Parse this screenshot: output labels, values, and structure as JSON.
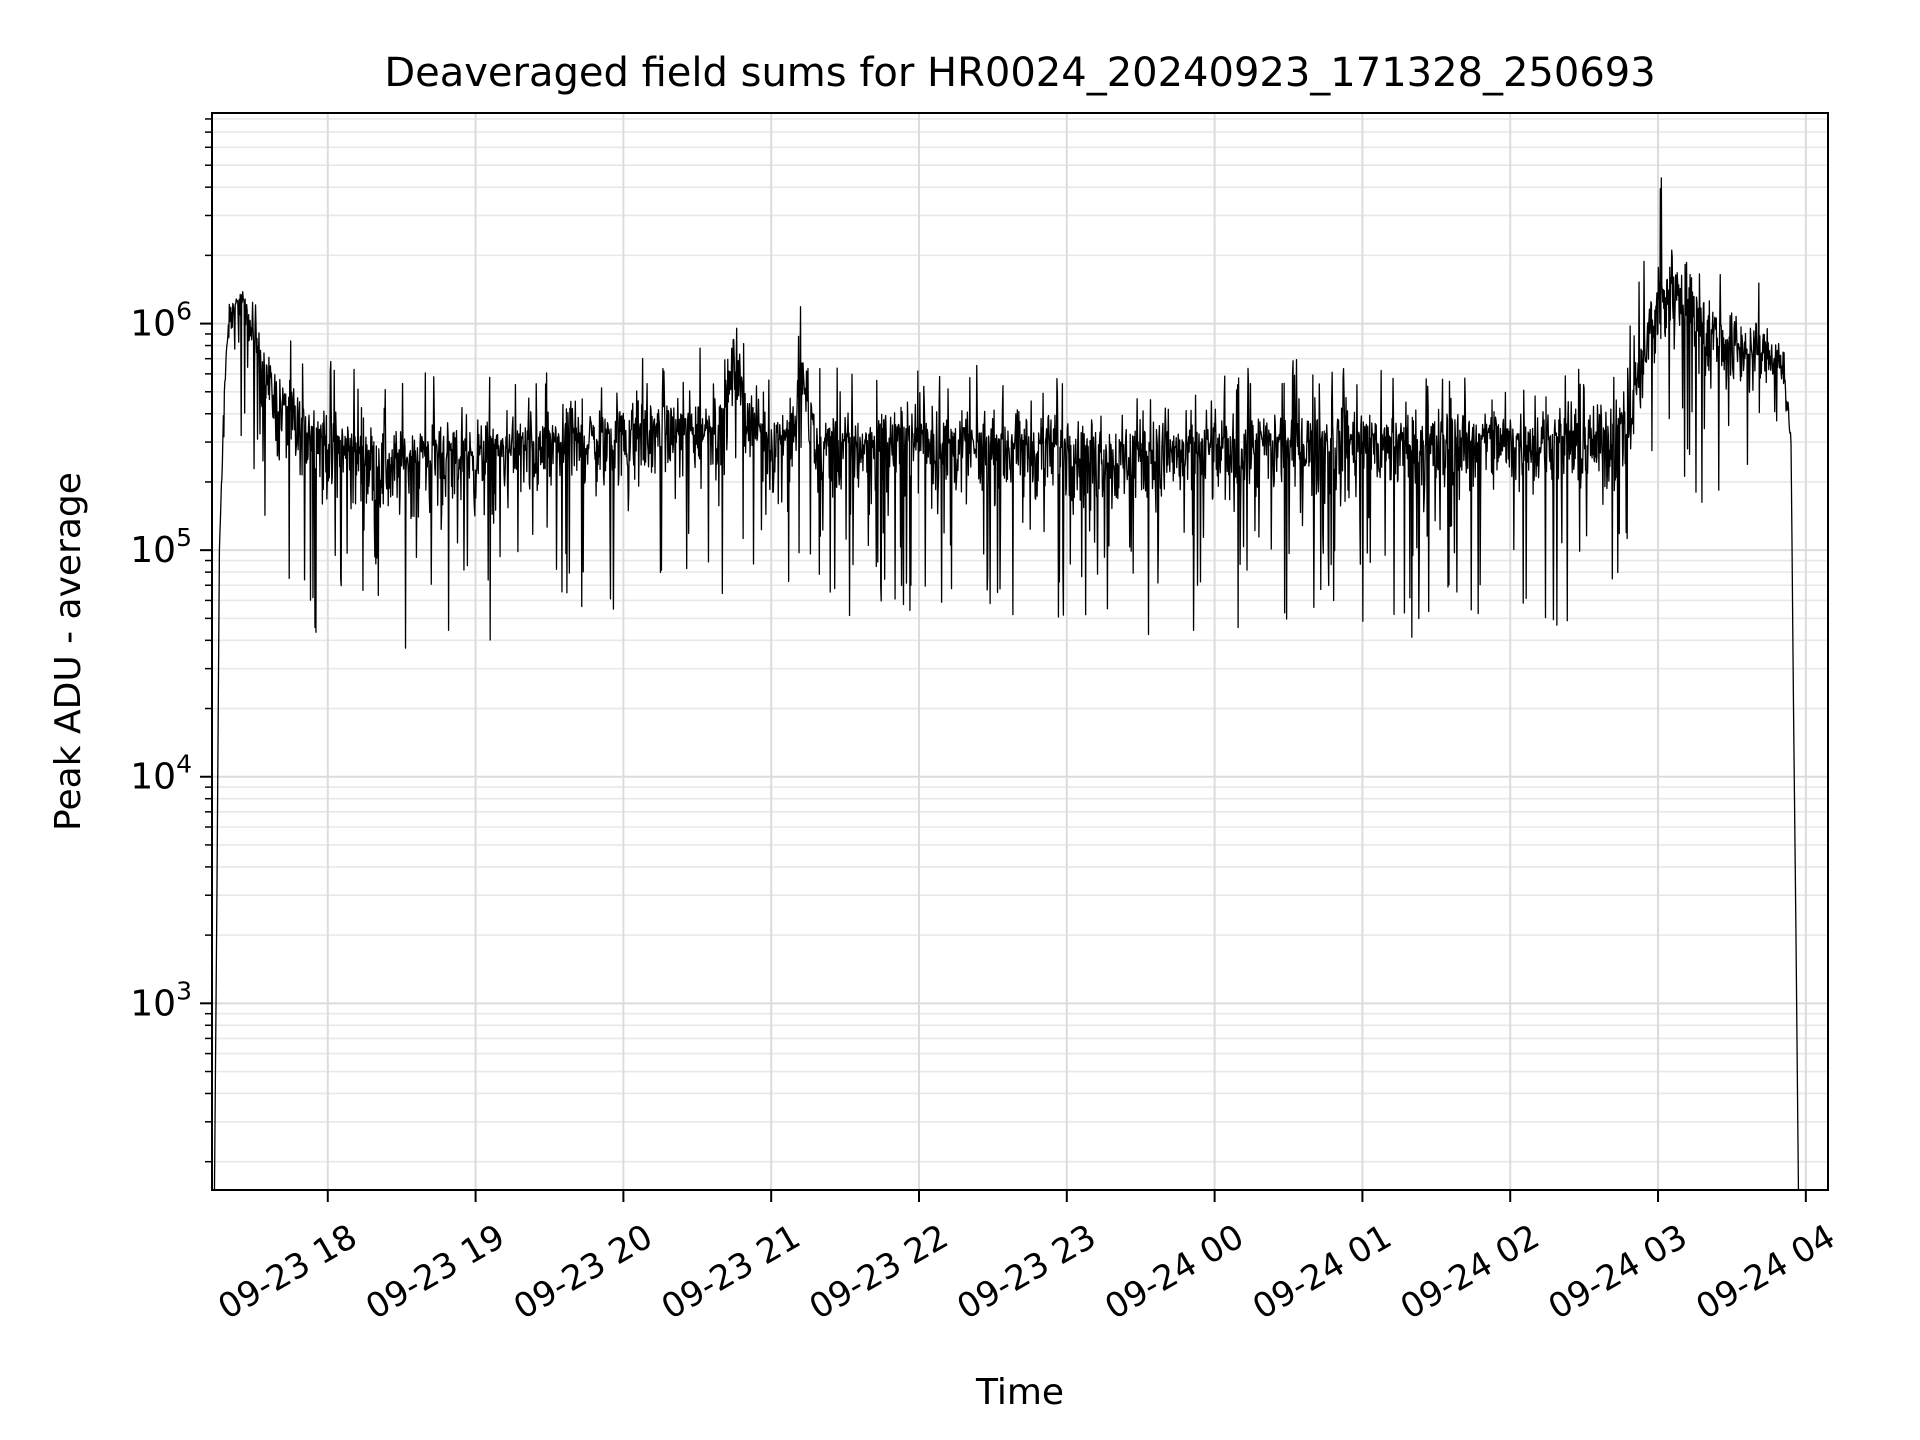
{
  "chart_data": {
    "type": "line",
    "title": "Deaveraged field sums for HR0024_20240923_171328_250693",
    "xlabel": "Time",
    "ylabel": "Peak ADU - average",
    "y_scale": "log",
    "grid": true,
    "grid_minor": true,
    "legend": "none",
    "xlim": [
      "2024-09-23 17:13",
      "2024-09-24 04:09"
    ],
    "ylim": [
      150,
      8500000
    ],
    "x_ticks": [
      {
        "value": "2024-09-23 18:00",
        "label": "09-23 18"
      },
      {
        "value": "2024-09-23 19:00",
        "label": "09-23 19"
      },
      {
        "value": "2024-09-23 20:00",
        "label": "09-23 20"
      },
      {
        "value": "2024-09-23 21:00",
        "label": "09-23 21"
      },
      {
        "value": "2024-09-23 22:00",
        "label": "09-23 22"
      },
      {
        "value": "2024-09-23 23:00",
        "label": "09-23 23"
      },
      {
        "value": "2024-09-24 00:00",
        "label": "09-24 00"
      },
      {
        "value": "2024-09-24 01:00",
        "label": "09-24 01"
      },
      {
        "value": "2024-09-24 02:00",
        "label": "09-24 02"
      },
      {
        "value": "2024-09-24 03:00",
        "label": "09-24 03"
      },
      {
        "value": "2024-09-24 04:00",
        "label": "09-24 04"
      }
    ],
    "y_ticks": [
      {
        "value": 1000,
        "base": "10",
        "exp": "3"
      },
      {
        "value": 10000,
        "base": "10",
        "exp": "4"
      },
      {
        "value": 100000,
        "base": "10",
        "exp": "5"
      },
      {
        "value": 1000000,
        "base": "10",
        "exp": "6"
      }
    ],
    "series": [
      {
        "color": "#000000",
        "x": [
          "2024-09-23 17:14",
          "2024-09-23 17:15",
          "2024-09-23 17:16",
          "2024-09-23 17:18",
          "2024-09-23 17:20",
          "2024-09-23 17:25",
          "2024-09-23 17:30",
          "2024-09-23 17:35",
          "2024-09-23 17:40",
          "2024-09-23 17:45",
          "2024-09-23 17:50",
          "2024-09-23 18:00",
          "2024-09-23 18:10",
          "2024-09-23 18:18",
          "2024-09-23 18:25",
          "2024-09-23 18:35",
          "2024-09-23 18:45",
          "2024-09-23 19:00",
          "2024-09-23 19:08",
          "2024-09-23 19:20",
          "2024-09-23 19:40",
          "2024-09-23 20:00",
          "2024-09-23 20:15",
          "2024-09-23 20:30",
          "2024-09-23 20:40",
          "2024-09-23 20:45",
          "2024-09-23 20:50",
          "2024-09-23 21:00",
          "2024-09-23 21:10",
          "2024-09-23 21:12",
          "2024-09-23 21:20",
          "2024-09-23 21:40",
          "2024-09-23 22:00",
          "2024-09-23 22:20",
          "2024-09-23 22:40",
          "2024-09-23 23:00",
          "2024-09-23 23:20",
          "2024-09-23 23:40",
          "2024-09-24 00:00",
          "2024-09-24 00:20",
          "2024-09-24 00:40",
          "2024-09-24 01:00",
          "2024-09-24 01:20",
          "2024-09-24 01:40",
          "2024-09-24 02:00",
          "2024-09-24 02:20",
          "2024-09-24 02:40",
          "2024-09-24 02:48",
          "2024-09-24 02:52",
          "2024-09-24 03:00",
          "2024-09-24 03:05",
          "2024-09-24 03:10",
          "2024-09-24 03:20",
          "2024-09-24 03:30",
          "2024-09-24 03:40",
          "2024-09-24 03:50",
          "2024-09-24 03:54",
          "2024-09-24 03:55",
          "2024-09-24 03:56",
          "2024-09-24 03:57"
        ],
        "y": [
          150,
          3000,
          100000,
          500000,
          1100000,
          1300000,
          900000,
          600000,
          450000,
          400000,
          350000,
          300000,
          280000,
          260000,
          240000,
          260000,
          270000,
          260000,
          270000,
          280000,
          300000,
          320000,
          340000,
          340000,
          380000,
          700000,
          400000,
          300000,
          350000,
          600000,
          280000,
          300000,
          320000,
          280000,
          290000,
          280000,
          260000,
          270000,
          280000,
          290000,
          300000,
          310000,
          290000,
          310000,
          300000,
          300000,
          310000,
          350000,
          600000,
          1200000,
          1500000,
          1300000,
          900000,
          800000,
          750000,
          700000,
          300000,
          20000,
          2000,
          150
        ],
        "noise_min": [
          150,
          3000,
          100000,
          300000,
          500000,
          200000,
          200000,
          100000,
          60000,
          50000,
          40000,
          40000,
          30000,
          40000,
          30000,
          40000,
          40000,
          40000,
          40000,
          45000,
          50000,
          55000,
          60000,
          60000,
          60000,
          150000,
          80000,
          50000,
          60000,
          60000,
          50000,
          50000,
          55000,
          50000,
          45000,
          45000,
          45000,
          40000,
          45000,
          45000,
          40000,
          45000,
          40000,
          45000,
          50000,
          45000,
          45000,
          100000,
          150000,
          200000,
          200000,
          200000,
          150000,
          200000,
          250000,
          300000,
          250000,
          20000,
          2000,
          150
        ],
        "noise_max": [
          150,
          3000,
          100000,
          700000,
          1400000,
          1600000,
          1300000,
          1100000,
          900000,
          850000,
          750000,
          700000,
          650000,
          600000,
          580000,
          620000,
          640000,
          650000,
          650000,
          680000,
          700000,
          750000,
          780000,
          800000,
          850000,
          1400000,
          900000,
          700000,
          800000,
          1400000,
          650000,
          650000,
          680000,
          650000,
          700000,
          650000,
          600000,
          620000,
          650000,
          680000,
          700000,
          700000,
          680000,
          700000,
          700000,
          650000,
          700000,
          900000,
          1500000,
          4500000,
          5000000,
          4000000,
          2500000,
          2000000,
          1800000,
          1200000,
          400000,
          20000,
          2000,
          150
        ]
      }
    ]
  }
}
